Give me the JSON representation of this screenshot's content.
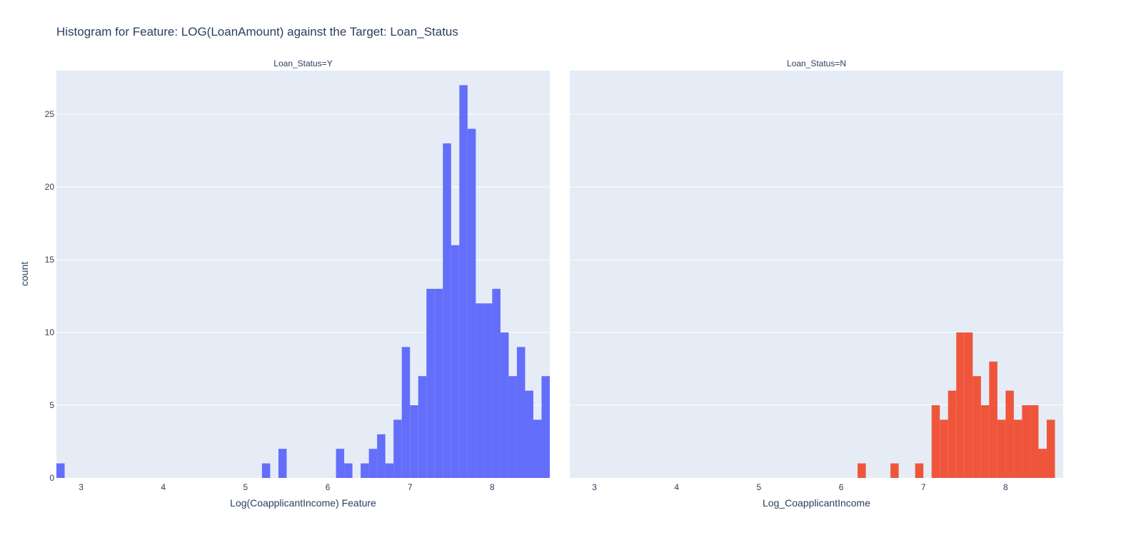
{
  "chart_data": {
    "type": "bar",
    "title": "Histogram for Feature: LOG(LoanAmount) against the Target: Loan_Status",
    "ylabel": "count",
    "ylim": [
      0,
      28
    ],
    "y_ticks": [
      0,
      5,
      10,
      15,
      20,
      25
    ],
    "grid": true,
    "panels": [
      {
        "facet_label": "Loan_Status=Y",
        "xlabel": "Log(CoapplicantIncome) Feature",
        "color": "#636efa",
        "xlim": [
          2.7,
          8.7
        ],
        "x_ticks": [
          3,
          4,
          5,
          6,
          7,
          8
        ],
        "bin_width": 0.1,
        "bins": [
          {
            "x": 2.7,
            "count": 1
          },
          {
            "x": 5.2,
            "count": 1
          },
          {
            "x": 5.4,
            "count": 2
          },
          {
            "x": 6.1,
            "count": 2
          },
          {
            "x": 6.2,
            "count": 1
          },
          {
            "x": 6.4,
            "count": 1
          },
          {
            "x": 6.5,
            "count": 2
          },
          {
            "x": 6.6,
            "count": 3
          },
          {
            "x": 6.7,
            "count": 1
          },
          {
            "x": 6.8,
            "count": 4
          },
          {
            "x": 6.9,
            "count": 9
          },
          {
            "x": 7.0,
            "count": 5
          },
          {
            "x": 7.1,
            "count": 7
          },
          {
            "x": 7.2,
            "count": 13
          },
          {
            "x": 7.3,
            "count": 13
          },
          {
            "x": 7.4,
            "count": 23
          },
          {
            "x": 7.5,
            "count": 16
          },
          {
            "x": 7.6,
            "count": 27
          },
          {
            "x": 7.7,
            "count": 24
          },
          {
            "x": 7.8,
            "count": 12
          },
          {
            "x": 7.9,
            "count": 12
          },
          {
            "x": 8.0,
            "count": 13
          },
          {
            "x": 8.1,
            "count": 10
          },
          {
            "x": 8.2,
            "count": 7
          },
          {
            "x": 8.3,
            "count": 9
          },
          {
            "x": 8.4,
            "count": 6
          },
          {
            "x": 8.5,
            "count": 4
          },
          {
            "x": 8.6,
            "count": 7
          }
        ]
      },
      {
        "facet_label": "Loan_Status=N",
        "xlabel": "Log_CoapplicantIncome",
        "color": "#ef553b",
        "xlim": [
          2.7,
          8.7
        ],
        "x_ticks": [
          3,
          4,
          5,
          6,
          7,
          8
        ],
        "bin_width": 0.1,
        "bins": [
          {
            "x": 6.2,
            "count": 1
          },
          {
            "x": 6.6,
            "count": 1
          },
          {
            "x": 6.9,
            "count": 1
          },
          {
            "x": 7.1,
            "count": 5
          },
          {
            "x": 7.2,
            "count": 4
          },
          {
            "x": 7.3,
            "count": 6
          },
          {
            "x": 7.4,
            "count": 10
          },
          {
            "x": 7.5,
            "count": 10
          },
          {
            "x": 7.6,
            "count": 7
          },
          {
            "x": 7.7,
            "count": 5
          },
          {
            "x": 7.8,
            "count": 8
          },
          {
            "x": 7.9,
            "count": 4
          },
          {
            "x": 8.0,
            "count": 6
          },
          {
            "x": 8.1,
            "count": 4
          },
          {
            "x": 8.2,
            "count": 5
          },
          {
            "x": 8.3,
            "count": 5
          },
          {
            "x": 8.4,
            "count": 2
          },
          {
            "x": 8.5,
            "count": 4
          }
        ]
      }
    ]
  }
}
